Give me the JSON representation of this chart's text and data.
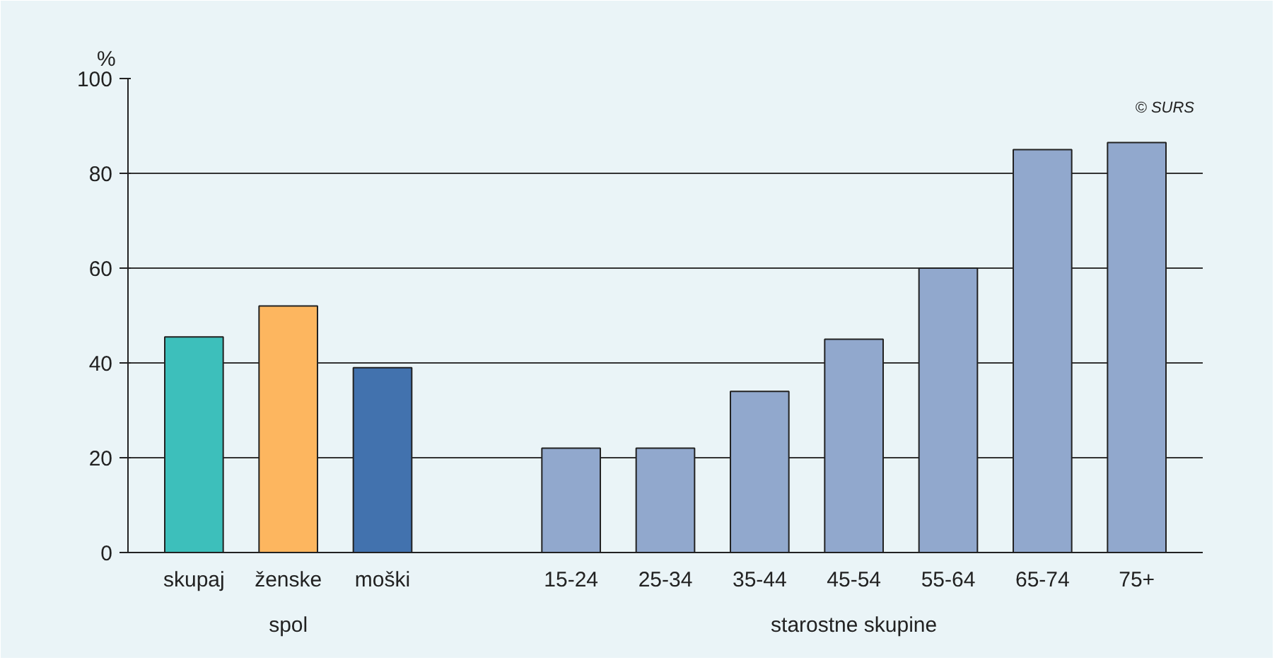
{
  "chart_data": {
    "type": "bar",
    "ylabel": "%",
    "categories": [
      "skupaj",
      "ženske",
      "moški",
      null,
      "15-24",
      "25-34",
      "35-44",
      "45-54",
      "55-64",
      "65-74",
      "75+"
    ],
    "values": [
      45.5,
      52,
      39,
      null,
      22,
      22,
      34,
      45,
      60,
      85,
      86.5
    ],
    "colors": [
      "#3dbfbb",
      "#fdb65f",
      "#4272ae",
      "#91a8cd",
      "#91a8cd",
      "#91a8cd",
      "#91a8cd",
      "#91a8cd",
      "#91a8cd",
      "#91a8cd",
      "#91a8cd"
    ],
    "ylim": [
      0,
      100
    ],
    "yticks": [
      0,
      20,
      40,
      60,
      80,
      100
    ],
    "grid": "y",
    "annotations": [
      "spol",
      "starostne skupine",
      "© SURS"
    ]
  }
}
